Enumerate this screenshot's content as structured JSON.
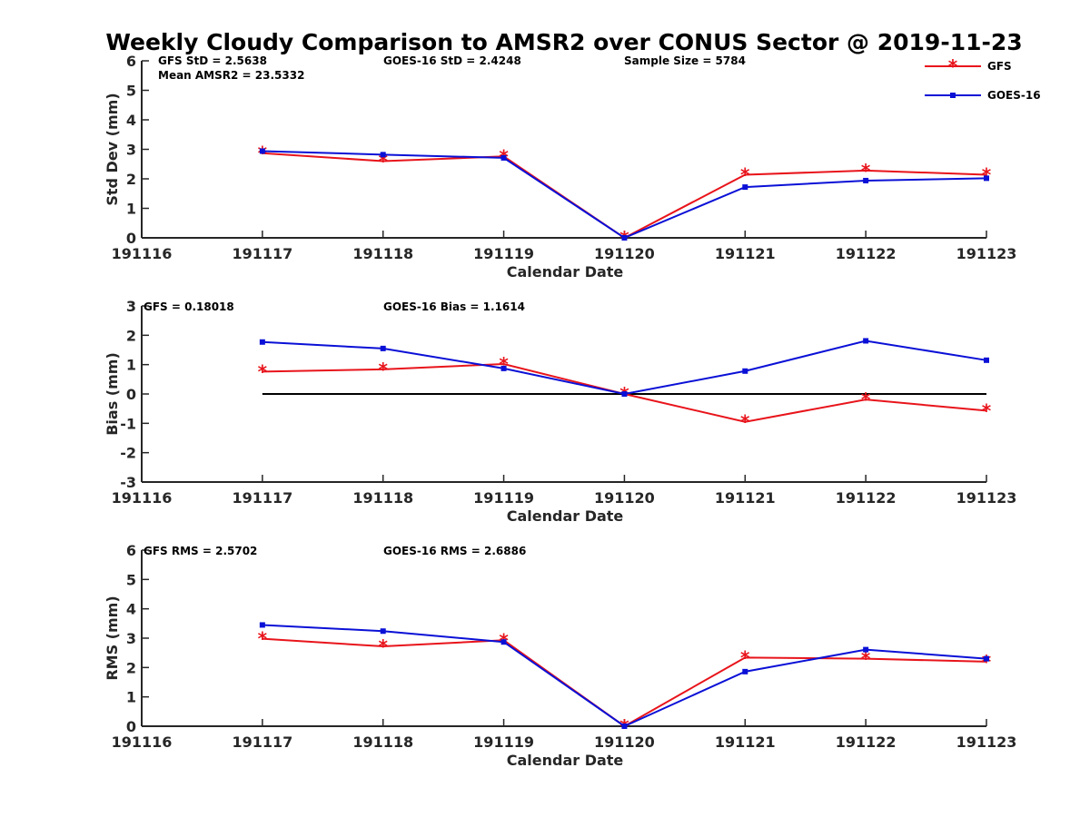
{
  "title": "Weekly Cloudy Comparison to AMSR2 over CONUS Sector @ 2019-11-23",
  "legend": {
    "placement": "top-right",
    "entries": [
      {
        "name": "GFS",
        "color": "#e8141b",
        "marker": "asterisk"
      },
      {
        "name": "GOES-16",
        "color": "#0a10d6",
        "marker": "square"
      }
    ]
  },
  "chart_data": [
    {
      "type": "line",
      "xlabel": "Calendar Date",
      "ylabel": "Std Dev (mm)",
      "x_ticks": [
        "191116",
        "191117",
        "191118",
        "191119",
        "191120",
        "191121",
        "191122",
        "191123"
      ],
      "x": [
        1,
        2,
        3,
        4,
        5,
        6,
        7
      ],
      "xlim": [
        0,
        7
      ],
      "ylim": [
        0,
        6
      ],
      "y_ticks": [
        "0",
        "1",
        "2",
        "3",
        "4",
        "5",
        "6"
      ],
      "annotations": [
        "GFS StD = 2.5638",
        "Mean AMSR2 = 23.5332",
        "GOES-16 StD = 2.4248",
        "Sample Size = 5784"
      ],
      "series": [
        {
          "name": "GFS",
          "color": "#e8141b",
          "values": [
            2.87,
            2.6,
            2.76,
            0.0,
            2.14,
            2.28,
            2.14
          ]
        },
        {
          "name": "GOES-16",
          "color": "#0a10d6",
          "values": [
            2.94,
            2.82,
            2.71,
            0.0,
            1.72,
            1.94,
            2.02
          ]
        }
      ]
    },
    {
      "type": "line",
      "xlabel": "Calendar Date",
      "ylabel": "Bias (mm)",
      "x_ticks": [
        "191116",
        "191117",
        "191118",
        "191119",
        "191120",
        "191121",
        "191122",
        "191123"
      ],
      "x": [
        1,
        2,
        3,
        4,
        5,
        6,
        7
      ],
      "xlim": [
        0,
        7
      ],
      "ylim": [
        -3,
        3
      ],
      "y_ticks": [
        "-3",
        "-2",
        "-1",
        "0",
        "1",
        "2",
        "3"
      ],
      "zero_line": true,
      "annotations": [
        "GFS = 0.18018",
        "GOES-16 Bias  = 1.1614"
      ],
      "series": [
        {
          "name": "GFS",
          "color": "#e8141b",
          "values": [
            0.76,
            0.84,
            1.02,
            0.0,
            -0.95,
            -0.19,
            -0.57
          ]
        },
        {
          "name": "GOES-16",
          "color": "#0a10d6",
          "values": [
            1.77,
            1.55,
            0.87,
            0.0,
            0.78,
            1.81,
            1.15
          ]
        }
      ]
    },
    {
      "type": "line",
      "xlabel": "Calendar Date",
      "ylabel": "RMS (mm)",
      "x_ticks": [
        "191116",
        "191117",
        "191118",
        "191119",
        "191120",
        "191121",
        "191122",
        "191123"
      ],
      "x": [
        1,
        2,
        3,
        4,
        5,
        6,
        7
      ],
      "xlim": [
        0,
        7
      ],
      "ylim": [
        0,
        6
      ],
      "y_ticks": [
        "0",
        "1",
        "2",
        "3",
        "4",
        "5",
        "6"
      ],
      "annotations": [
        "GFS RMS = 2.5702",
        "GOES-16 RMS = 2.6886"
      ],
      "series": [
        {
          "name": "GFS",
          "color": "#e8141b",
          "values": [
            2.98,
            2.72,
            2.93,
            0.0,
            2.34,
            2.3,
            2.2
          ]
        },
        {
          "name": "GOES-16",
          "color": "#0a10d6",
          "values": [
            3.45,
            3.24,
            2.87,
            0.0,
            1.86,
            2.61,
            2.3
          ]
        }
      ]
    }
  ]
}
